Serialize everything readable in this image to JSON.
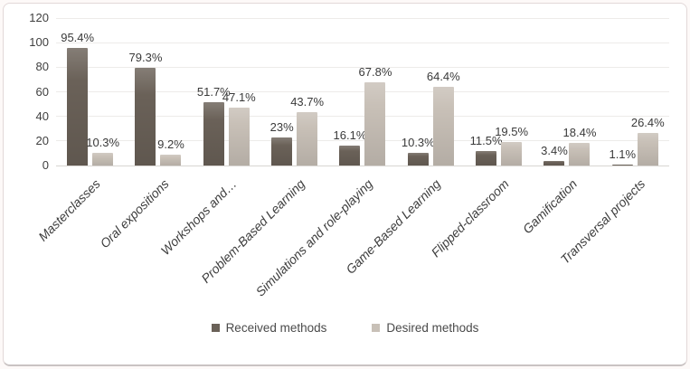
{
  "chart_data": {
    "type": "bar",
    "title": "",
    "xlabel": "",
    "ylabel": "",
    "ylim": [
      0,
      120
    ],
    "y_ticks": [
      0,
      20,
      40,
      60,
      80,
      100,
      120
    ],
    "grid": true,
    "legend_position": "bottom",
    "categories": [
      "Masterclasses",
      "Oral expositions",
      "Workshops and…",
      "Problem-Based Learning",
      "Simulations and role-playing",
      "Game-Based Learning",
      "Flipped-classroom",
      "Gamification",
      "Transversal projects"
    ],
    "series": [
      {
        "name": "Received methods",
        "color": "#6a6158",
        "values": [
          95.4,
          79.3,
          51.7,
          23,
          16.1,
          10.3,
          11.5,
          3.4,
          1.1
        ],
        "data_labels": [
          "95.4%",
          "79.3%",
          "51.7%",
          "23%",
          "16.1%",
          "10.3%",
          "11.5%",
          "3.4%",
          "1.1%"
        ]
      },
      {
        "name": "Desired methods",
        "color": "#c8c0b7",
        "values": [
          10.3,
          9.2,
          47.1,
          43.7,
          67.8,
          64.4,
          19.5,
          18.4,
          26.4
        ],
        "data_labels": [
          "10.3%",
          "9.2%",
          "47.1%",
          "43.7%",
          "67.8%",
          "64.4%",
          "19.5%",
          "18.4%",
          "26.4%"
        ]
      }
    ]
  },
  "legend": {
    "items": [
      {
        "label": "Received methods",
        "color": "#6a6158"
      },
      {
        "label": "Desired methods",
        "color": "#c8c0b7"
      }
    ]
  },
  "colors": {
    "gridline": "#edebe9",
    "axis_line": "#d8d5d2",
    "text": "#3d3d3d",
    "frame_border": "#e2d8d8",
    "background": "#ffffff"
  }
}
